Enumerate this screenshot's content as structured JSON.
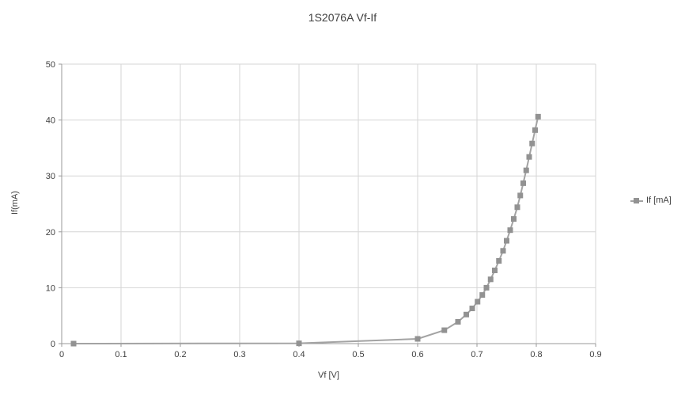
{
  "chart_data": {
    "type": "line",
    "title": "1S2076A Vf-If",
    "xlabel": "Vf [V]",
    "ylabel": "If(mA)",
    "legend": [
      {
        "label": "If [mA]"
      }
    ],
    "legend_position": "right",
    "grid": true,
    "xlim": [
      0,
      0.9
    ],
    "ylim": [
      0,
      50
    ],
    "x_ticks": [
      0,
      0.1,
      0.2,
      0.3,
      0.4,
      0.5,
      0.6,
      0.7,
      0.8,
      0.9
    ],
    "x_tick_labels": [
      "0",
      "0.1",
      "0.2",
      "0.3",
      "0.4",
      "0.5",
      "0.6",
      "0.7",
      "0.8",
      "0.9"
    ],
    "y_ticks": [
      0,
      10,
      20,
      30,
      40,
      50
    ],
    "y_tick_labels": [
      "0",
      "10",
      "20",
      "30",
      "40",
      "50"
    ],
    "series": [
      {
        "name": "If [mA]",
        "marker": "square",
        "x": [
          0.02,
          0.4,
          0.6,
          0.645,
          0.668,
          0.682,
          0.692,
          0.701,
          0.709,
          0.716,
          0.723,
          0.73,
          0.737,
          0.744,
          0.75,
          0.756,
          0.762,
          0.768,
          0.773,
          0.778,
          0.783,
          0.788,
          0.793,
          0.798,
          0.803
        ],
        "y": [
          0.0,
          0.05,
          0.85,
          2.4,
          3.9,
          5.2,
          6.3,
          7.5,
          8.7,
          10.0,
          11.5,
          13.1,
          14.8,
          16.6,
          18.4,
          20.3,
          22.3,
          24.4,
          26.5,
          28.7,
          31.0,
          33.4,
          35.8,
          38.2,
          40.6
        ]
      }
    ],
    "colors": {
      "grid": "#d6d6d6",
      "axis": "#9a9a9a",
      "tick_text": "#404040",
      "series_line": "#a3a3a3",
      "series_marker": "#929292",
      "background": "#ffffff"
    }
  }
}
